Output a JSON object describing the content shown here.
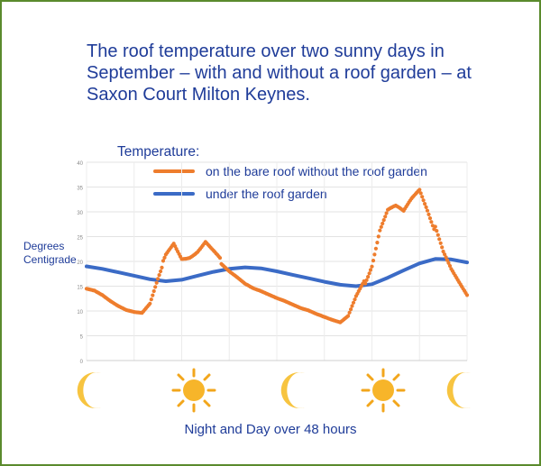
{
  "title": "The roof temperature over two sunny days in September – with and without a roof garden – at Saxon Court Milton Keynes.",
  "legend_title": "Temperature:",
  "ylabel": "Degrees Centigrade",
  "xlabel": "Night and Day over 48 hours",
  "icons": [
    "moon-icon",
    "sun-icon",
    "moon-icon",
    "sun-icon",
    "moon-icon"
  ],
  "colors": {
    "bare_roof": "#ee7d2d",
    "roof_garden": "#3b6bc6",
    "text": "#1f3c99",
    "border": "#5a8a2c"
  },
  "chart_data": {
    "type": "line",
    "xlabel": "Night and Day over 48 hours",
    "ylabel": "Degrees Centigrade",
    "ylim": [
      0,
      40
    ],
    "yticks": [
      "0",
      "5",
      "10",
      "15",
      "20",
      "25",
      "30",
      "35",
      "40"
    ],
    "xlim": [
      0,
      48
    ],
    "grid": true,
    "legend_placement": "top",
    "series": [
      {
        "name": "on the bare roof without the roof garden",
        "style": "dots",
        "x": [
          0,
          1,
          2,
          3,
          4,
          5,
          6,
          7,
          8,
          9,
          10,
          11,
          12,
          13,
          14,
          15,
          16,
          17,
          18,
          19,
          20,
          21,
          22,
          23,
          24,
          25,
          26,
          27,
          28,
          29,
          30,
          31,
          32,
          33,
          34,
          35,
          36,
          37,
          38,
          39,
          40,
          41,
          42,
          43,
          44,
          45,
          46,
          47,
          48
        ],
        "y": [
          14.5,
          14.1,
          13.2,
          12.0,
          11.0,
          10.2,
          9.8,
          9.6,
          11.5,
          16.5,
          21.0,
          24.0,
          21.5,
          22.0,
          23.0,
          24.5,
          22.0,
          19.5,
          18.0,
          16.8,
          15.5,
          14.6,
          14.0,
          13.3,
          12.6,
          12.0,
          11.3,
          10.6,
          10.1,
          9.4,
          8.8,
          8.2,
          7.7,
          9.0,
          13.0,
          16.0,
          19.5,
          26.0,
          29.5,
          30.0,
          29.0,
          32.0,
          34.5,
          31.0,
          27.0,
          22.0,
          18.5,
          15.8,
          13.2
        ]
      },
      {
        "name": "under the roof garden",
        "style": "line",
        "x": [
          0,
          2,
          4,
          6,
          8,
          10,
          12,
          14,
          16,
          18,
          20,
          22,
          24,
          26,
          28,
          30,
          32,
          34,
          36,
          38,
          40,
          42,
          44,
          46,
          48
        ],
        "y": [
          19.0,
          18.5,
          17.8,
          17.1,
          16.4,
          16.0,
          16.3,
          17.1,
          17.9,
          18.5,
          18.8,
          18.6,
          18.0,
          17.3,
          16.6,
          15.9,
          15.3,
          15.0,
          15.4,
          16.7,
          18.2,
          19.6,
          20.5,
          20.4,
          19.8
        ]
      }
    ]
  }
}
